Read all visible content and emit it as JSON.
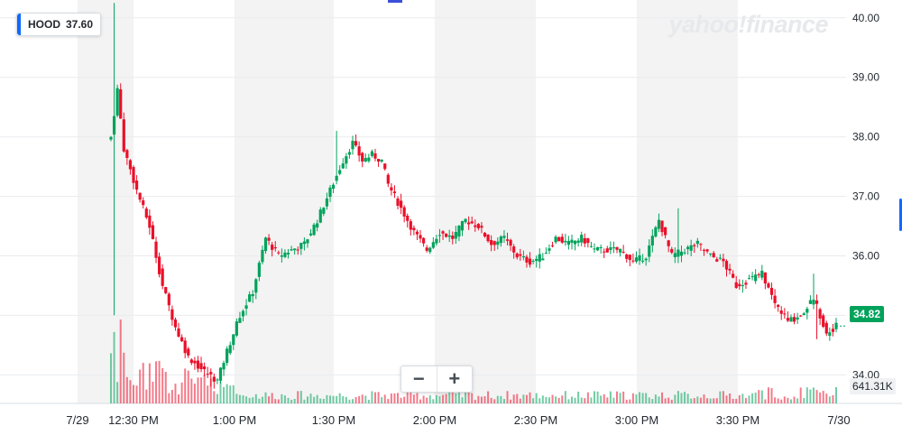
{
  "ticker": {
    "symbol": "HOOD",
    "price": "37.60"
  },
  "watermark": "yahoo!finance",
  "zoom": {
    "minus_label": "−",
    "plus_label": "+"
  },
  "last_price_label": "34.82",
  "volume_label": "641.31K",
  "colors": {
    "up": "#00a25b",
    "down": "#eb0f29",
    "shade": "#f3f3f3",
    "grid": "#e9ebee",
    "accent": "#0f69ff"
  },
  "chart_data": {
    "type": "candlestick",
    "xlabels": [
      "7/29",
      "12:30 PM",
      "1:00 PM",
      "1:30 PM",
      "2:00 PM",
      "2:30 PM",
      "3:00 PM",
      "3:30 PM",
      "7/30"
    ],
    "ytick_labels": [
      "40.00",
      "39.00",
      "38.00",
      "37.00",
      "36.00",
      "35.00",
      "34.00"
    ],
    "yticks": [
      40,
      39,
      38,
      37,
      36,
      35,
      34
    ],
    "ylim": [
      33.52,
      40.3
    ],
    "time_range_minutes": [
      0,
      225
    ],
    "price_anchors_minutes_close": [
      [
        0,
        38.0
      ],
      [
        2,
        38.8
      ],
      [
        4,
        37.8
      ],
      [
        8,
        37.1
      ],
      [
        12,
        36.5
      ],
      [
        16,
        35.5
      ],
      [
        20,
        34.8
      ],
      [
        24,
        34.3
      ],
      [
        28,
        34.1
      ],
      [
        33,
        33.9
      ],
      [
        36,
        34.4
      ],
      [
        40,
        35.0
      ],
      [
        44,
        35.4
      ],
      [
        48,
        36.3
      ],
      [
        52,
        36.0
      ],
      [
        56,
        36.1
      ],
      [
        60,
        36.2
      ],
      [
        64,
        36.6
      ],
      [
        68,
        37.1
      ],
      [
        72,
        37.6
      ],
      [
        75,
        37.9
      ],
      [
        78,
        37.6
      ],
      [
        81,
        37.7
      ],
      [
        84,
        37.6
      ],
      [
        86,
        37.2
      ],
      [
        90,
        36.8
      ],
      [
        94,
        36.4
      ],
      [
        98,
        36.1
      ],
      [
        102,
        36.4
      ],
      [
        106,
        36.3
      ],
      [
        110,
        36.6
      ],
      [
        114,
        36.5
      ],
      [
        118,
        36.2
      ],
      [
        122,
        36.3
      ],
      [
        126,
        36.0
      ],
      [
        130,
        35.9
      ],
      [
        134,
        36.0
      ],
      [
        138,
        36.3
      ],
      [
        142,
        36.2
      ],
      [
        146,
        36.3
      ],
      [
        150,
        36.1
      ],
      [
        154,
        36.1
      ],
      [
        158,
        36.1
      ],
      [
        162,
        35.9
      ],
      [
        166,
        36.0
      ],
      [
        170,
        36.6
      ],
      [
        174,
        36.0
      ],
      [
        178,
        36.1
      ],
      [
        182,
        36.2
      ],
      [
        186,
        36.0
      ],
      [
        190,
        35.9
      ],
      [
        194,
        35.5
      ],
      [
        198,
        35.6
      ],
      [
        202,
        35.7
      ],
      [
        206,
        35.2
      ],
      [
        210,
        34.9
      ],
      [
        214,
        35.0
      ],
      [
        218,
        35.3
      ],
      [
        222,
        34.7
      ],
      [
        225,
        34.82
      ]
    ],
    "price_highs": [
      [
        1,
        40.25
      ],
      [
        3,
        38.9
      ],
      [
        70,
        38.1
      ],
      [
        176,
        36.8
      ],
      [
        218,
        35.7
      ]
    ],
    "price_lows": [
      [
        1,
        35.0
      ],
      [
        31,
        33.8
      ],
      [
        219,
        34.6
      ]
    ],
    "volume_k": [
      641.31
    ]
  }
}
